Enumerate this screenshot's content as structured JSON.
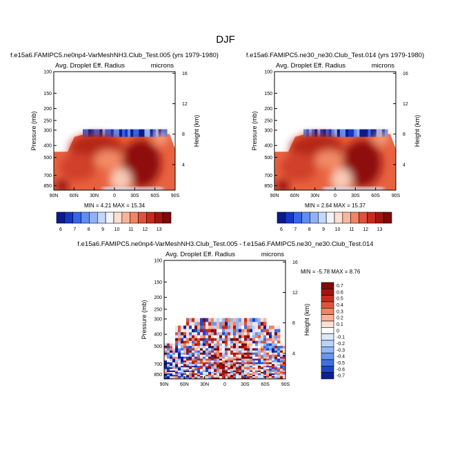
{
  "figure_title": "DJF",
  "colors": {
    "blue_dark": "#00008b",
    "blue": "#1f3fcf",
    "white": "#ffffff",
    "red": "#d73020",
    "red_dark": "#8b0000"
  },
  "chart_data": [
    {
      "type": "heatmap",
      "panel_id": "top-left",
      "case_title": "f.e15a6.FAMIPC5.ne0np4-VarMeshNH3.Club_Test.005 (yrs 1979-1980)",
      "variable": "Avg. Droplet Eff. Radius",
      "units": "microns",
      "ylabel": "Pressure (mb)",
      "y2label": "Height (km)",
      "x_ticks": [
        "90N",
        "60N",
        "30N",
        "0",
        "30S",
        "60S",
        "90S"
      ],
      "y_ticks": [
        "100",
        "150",
        "200",
        "250",
        "300",
        "400",
        "500",
        "700",
        "850"
      ],
      "y2_ticks": [
        "16",
        "12",
        "8",
        "4"
      ],
      "min_label": "MIN =",
      "min": "4.21",
      "max_label": "MAX =",
      "max": "15.34",
      "colorbar_labels": [
        "6",
        "7",
        "8",
        "9",
        "10",
        "11",
        "12",
        "13"
      ]
    },
    {
      "type": "heatmap",
      "panel_id": "top-right",
      "case_title": "f.e15a6.FAMIPC5.ne30_ne30.Club_Test.014 (yrs 1979-1980)",
      "variable": "Avg. Droplet Eff. Radius",
      "units": "microns",
      "ylabel": "Pressure (mb)",
      "y2label": "Height (km)",
      "x_ticks": [
        "90N",
        "60N",
        "30N",
        "0",
        "30S",
        "60S",
        "90S"
      ],
      "y_ticks": [
        "100",
        "150",
        "200",
        "250",
        "300",
        "400",
        "500",
        "700",
        "850"
      ],
      "y2_ticks": [
        "16",
        "12",
        "8",
        "4"
      ],
      "min_label": "MIN =",
      "min": "2.64",
      "max_label": "MAX =",
      "max": "15.37",
      "colorbar_labels": [
        "6",
        "7",
        "8",
        "9",
        "10",
        "11",
        "12",
        "13"
      ]
    },
    {
      "type": "heatmap",
      "panel_id": "difference",
      "case_title": "f.e15a6.FAMIPC5.ne0np4-VarMeshNH3.Club_Test.005 - f.e15a6.FAMIPC5.ne30_ne30.Club_Test.014",
      "variable": "Avg. Droplet Eff. Radius",
      "units": "microns",
      "ylabel": "Pressure (mb)",
      "y2label": "Height (km)",
      "x_ticks": [
        "90N",
        "60N",
        "30N",
        "0",
        "30S",
        "60S",
        "90S"
      ],
      "y_ticks": [
        "100",
        "150",
        "200",
        "250",
        "300",
        "400",
        "500",
        "700",
        "850"
      ],
      "y2_ticks": [
        "16",
        "12",
        "8",
        "4"
      ],
      "min_label": "MIN =",
      "min": "-5.78",
      "max_label": "MAX =",
      "max": "8.76",
      "colorbar_labels": [
        "0.7",
        "0.6",
        "0.5",
        "0.4",
        "0.3",
        "0.2",
        "0.1",
        "0",
        "-0.1",
        "-0.2",
        "-0.3",
        "-0.4",
        "-0.5",
        "-0.6",
        "-0.7"
      ]
    }
  ]
}
